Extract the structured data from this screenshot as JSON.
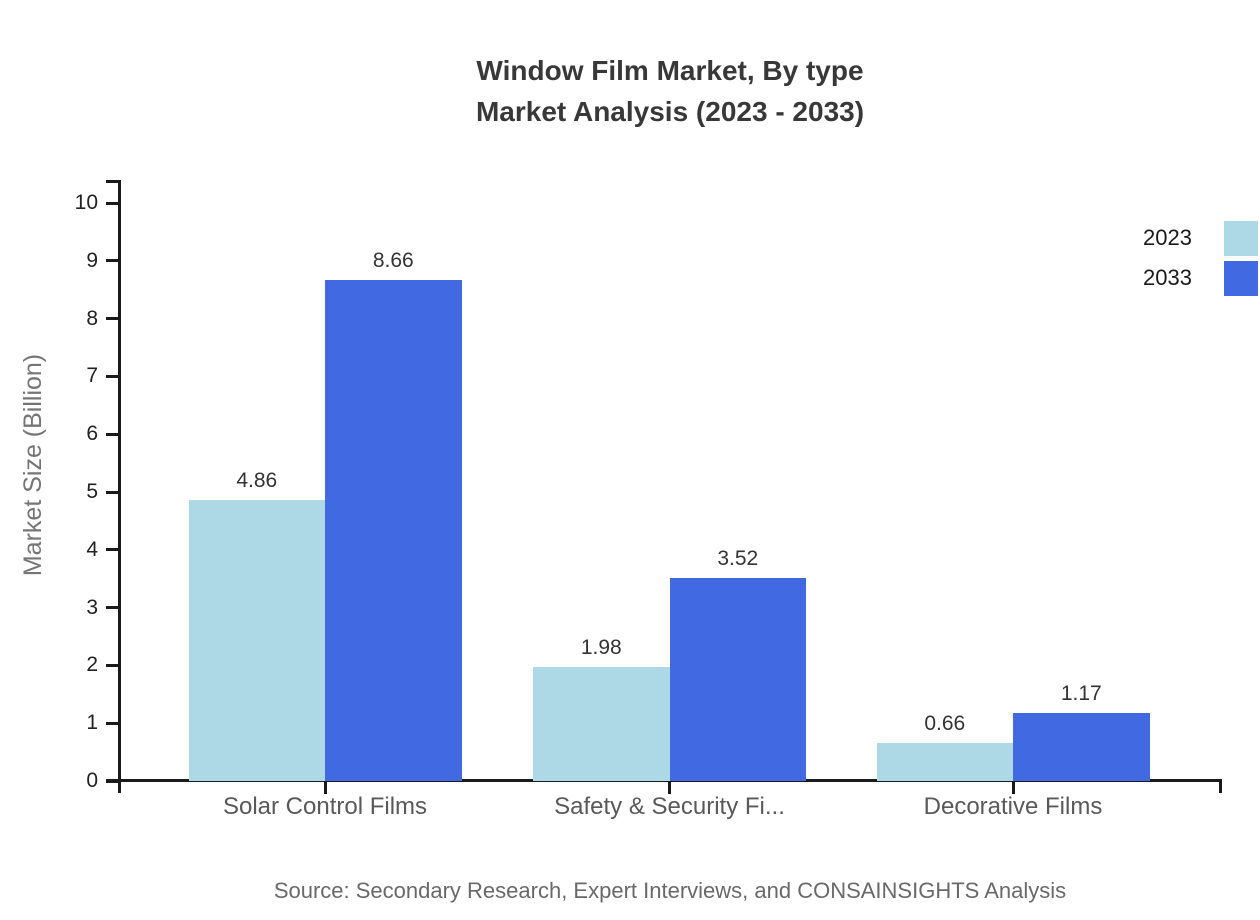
{
  "chart_data": {
    "type": "bar",
    "title_lines": [
      "Window Film Market, By type",
      "Market Analysis (2023 - 2033)"
    ],
    "ylabel": "Market Size (Billion)",
    "ylim": [
      0,
      10
    ],
    "yticks": [
      0,
      1,
      2,
      3,
      4,
      5,
      6,
      7,
      8,
      9,
      10
    ],
    "categories": [
      "Solar Control Films",
      "Safety & Security Fi...",
      "Decorative Films"
    ],
    "series": [
      {
        "name": "2023",
        "color": "#ADD8E6",
        "values": [
          4.86,
          1.98,
          0.66
        ]
      },
      {
        "name": "2033",
        "color": "#4169E1",
        "values": [
          8.66,
          3.52,
          1.17
        ]
      }
    ],
    "value_label_decimals": 2,
    "grid": false,
    "legend_position": "right-top",
    "source": "Source: Secondary Research, Expert Interviews, and CONSAINSIGHTS Analysis"
  }
}
